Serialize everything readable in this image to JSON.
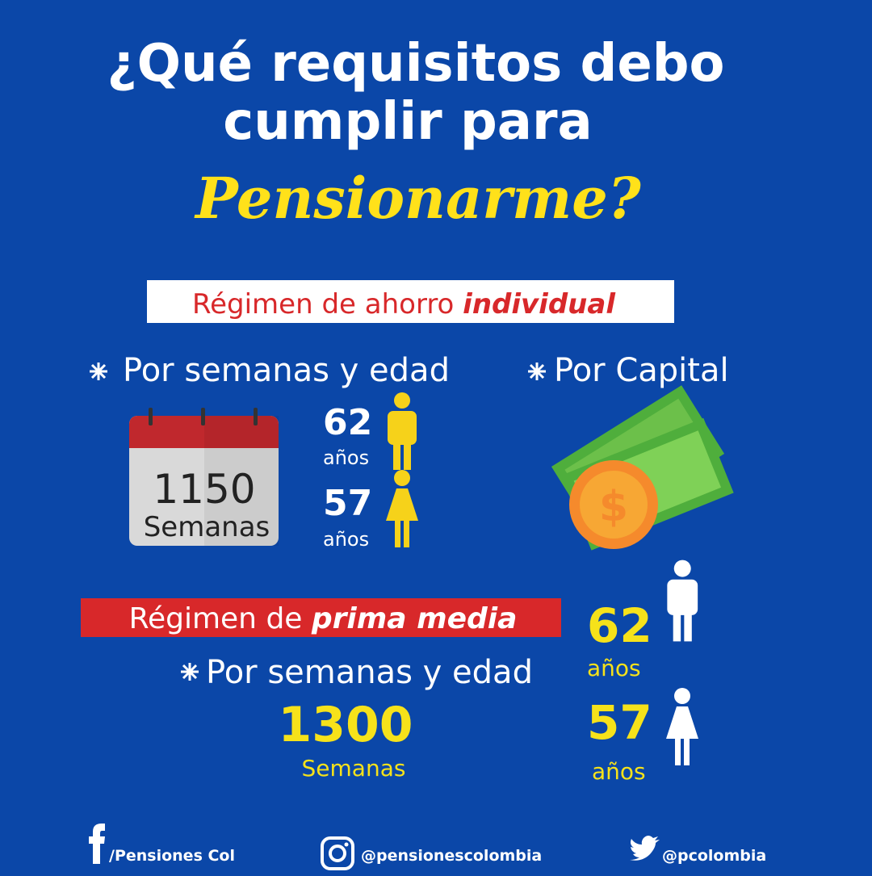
{
  "header": {
    "title_line1": "¿Qué requisitos debo",
    "title_line2": "cumplir para",
    "title_highlight": "Pensionarme?"
  },
  "individual": {
    "label": "Régimen de ahorro ",
    "label_bold": "individual",
    "option1": "Por semanas y edad",
    "option2": "Por Capital",
    "weeks": 1150,
    "weeks_label": "Semanas",
    "men_age": 62,
    "men_age_label": "años",
    "women_age": 57,
    "women_age_label": "años"
  },
  "prima_media": {
    "label": "Régimen de ",
    "label_bold": "prima media",
    "option": "Por semanas y edad",
    "weeks": 1300,
    "weeks_label": "Semanas",
    "men_age": 62,
    "men_age_label": "años",
    "women_age": 57,
    "women_age_label": "años"
  },
  "footer": {
    "facebook": "/Pensiones Col",
    "instagram": "@pensionescolombia",
    "twitter": "@pcolombia"
  }
}
